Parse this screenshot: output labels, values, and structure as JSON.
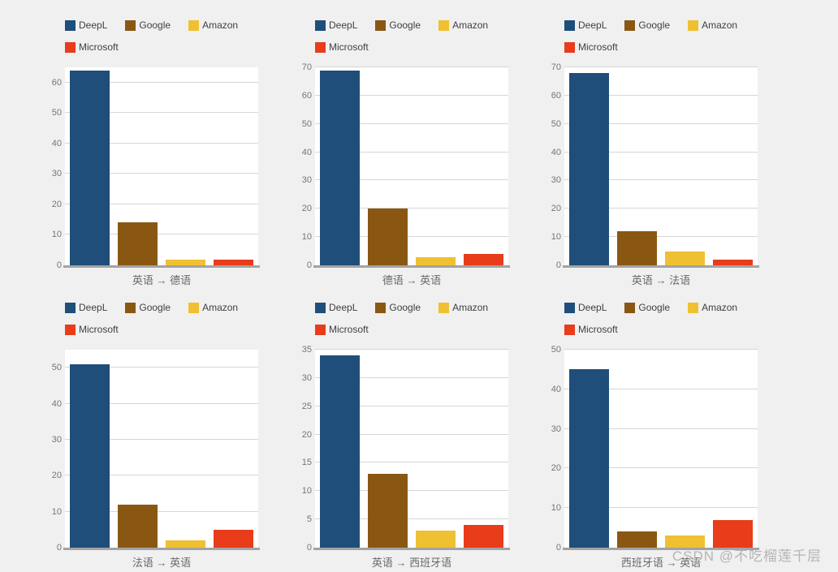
{
  "page": {
    "background": "#F0F0F0",
    "watermark": "CSDN @不吃榴莲千层"
  },
  "legend": {
    "position": "top",
    "items": [
      {
        "label": "DeepL",
        "color": "#1E4E79"
      },
      {
        "label": "Google",
        "color": "#8A5713"
      },
      {
        "label": "Amazon",
        "color": "#EFC132"
      },
      {
        "label": "Microsoft",
        "color": "#E83C1B"
      }
    ]
  },
  "chart_data": [
    {
      "type": "bar",
      "title": "英语 → 德语",
      "title_position": "bottom",
      "categories": [
        "DeepL",
        "Google",
        "Amazon",
        "Microsoft"
      ],
      "values": [
        64,
        14,
        2,
        2
      ],
      "ylim": [
        0,
        65
      ],
      "yticks": [
        0,
        10,
        20,
        30,
        40,
        50,
        60
      ],
      "grid": true
    },
    {
      "type": "bar",
      "title": "德语 → 英语",
      "title_position": "bottom",
      "categories": [
        "DeepL",
        "Google",
        "Amazon",
        "Microsoft"
      ],
      "values": [
        69,
        20,
        3,
        4
      ],
      "ylim": [
        0,
        70
      ],
      "yticks": [
        0,
        10,
        20,
        30,
        40,
        50,
        60,
        70
      ],
      "grid": true
    },
    {
      "type": "bar",
      "title": "英语 → 法语",
      "title_position": "bottom",
      "categories": [
        "DeepL",
        "Google",
        "Amazon",
        "Microsoft"
      ],
      "values": [
        68,
        12,
        5,
        2
      ],
      "ylim": [
        0,
        70
      ],
      "yticks": [
        0,
        10,
        20,
        30,
        40,
        50,
        60,
        70
      ],
      "grid": true
    },
    {
      "type": "bar",
      "title": "法语 → 英语",
      "title_position": "bottom",
      "categories": [
        "DeepL",
        "Google",
        "Amazon",
        "Microsoft"
      ],
      "values": [
        51,
        12,
        2,
        5
      ],
      "ylim": [
        0,
        55
      ],
      "yticks": [
        0,
        10,
        20,
        30,
        40,
        50
      ],
      "grid": true
    },
    {
      "type": "bar",
      "title": "英语 → 西班牙语",
      "title_position": "bottom",
      "categories": [
        "DeepL",
        "Google",
        "Amazon",
        "Microsoft"
      ],
      "values": [
        34,
        13,
        3,
        4
      ],
      "ylim": [
        0,
        35
      ],
      "yticks": [
        0,
        5,
        10,
        15,
        20,
        25,
        30,
        35
      ],
      "grid": true
    },
    {
      "type": "bar",
      "title": "西班牙语 → 英语",
      "title_position": "bottom",
      "categories": [
        "DeepL",
        "Google",
        "Amazon",
        "Microsoft"
      ],
      "values": [
        45,
        4,
        3,
        7
      ],
      "ylim": [
        0,
        50
      ],
      "yticks": [
        0,
        10,
        20,
        30,
        40,
        50
      ],
      "grid": true
    }
  ]
}
